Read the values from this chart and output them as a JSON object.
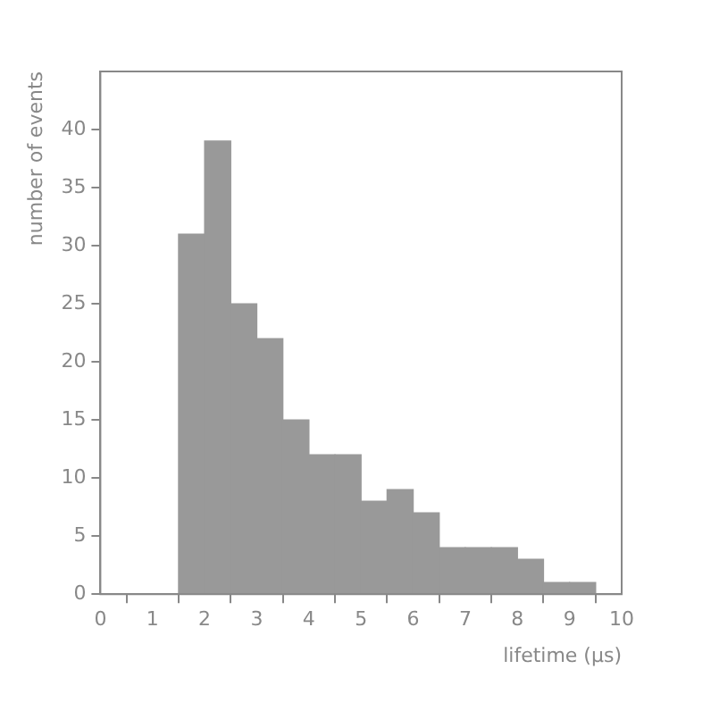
{
  "chart_data": {
    "type": "histogram",
    "xlabel": "lifetime (μs)",
    "ylabel": "number of events",
    "bins": [
      1.5,
      2,
      2.5,
      3,
      3.5,
      4,
      4.5,
      5,
      5.5,
      6,
      6.5,
      7,
      7.5,
      8,
      8.5,
      9,
      9.5
    ],
    "values": [
      31,
      39,
      25,
      22,
      15,
      12,
      12,
      8,
      9,
      7,
      4,
      4,
      4,
      3,
      1,
      1
    ],
    "color": "#999999",
    "xlim": [
      0,
      10
    ],
    "xticks": [
      0,
      1,
      2,
      3,
      4,
      5,
      6,
      7,
      8,
      9,
      10
    ],
    "ylim": [
      0,
      45
    ],
    "yticks": [
      0,
      5,
      10,
      15,
      20,
      25,
      30,
      35,
      40
    ],
    "grid": false
  }
}
